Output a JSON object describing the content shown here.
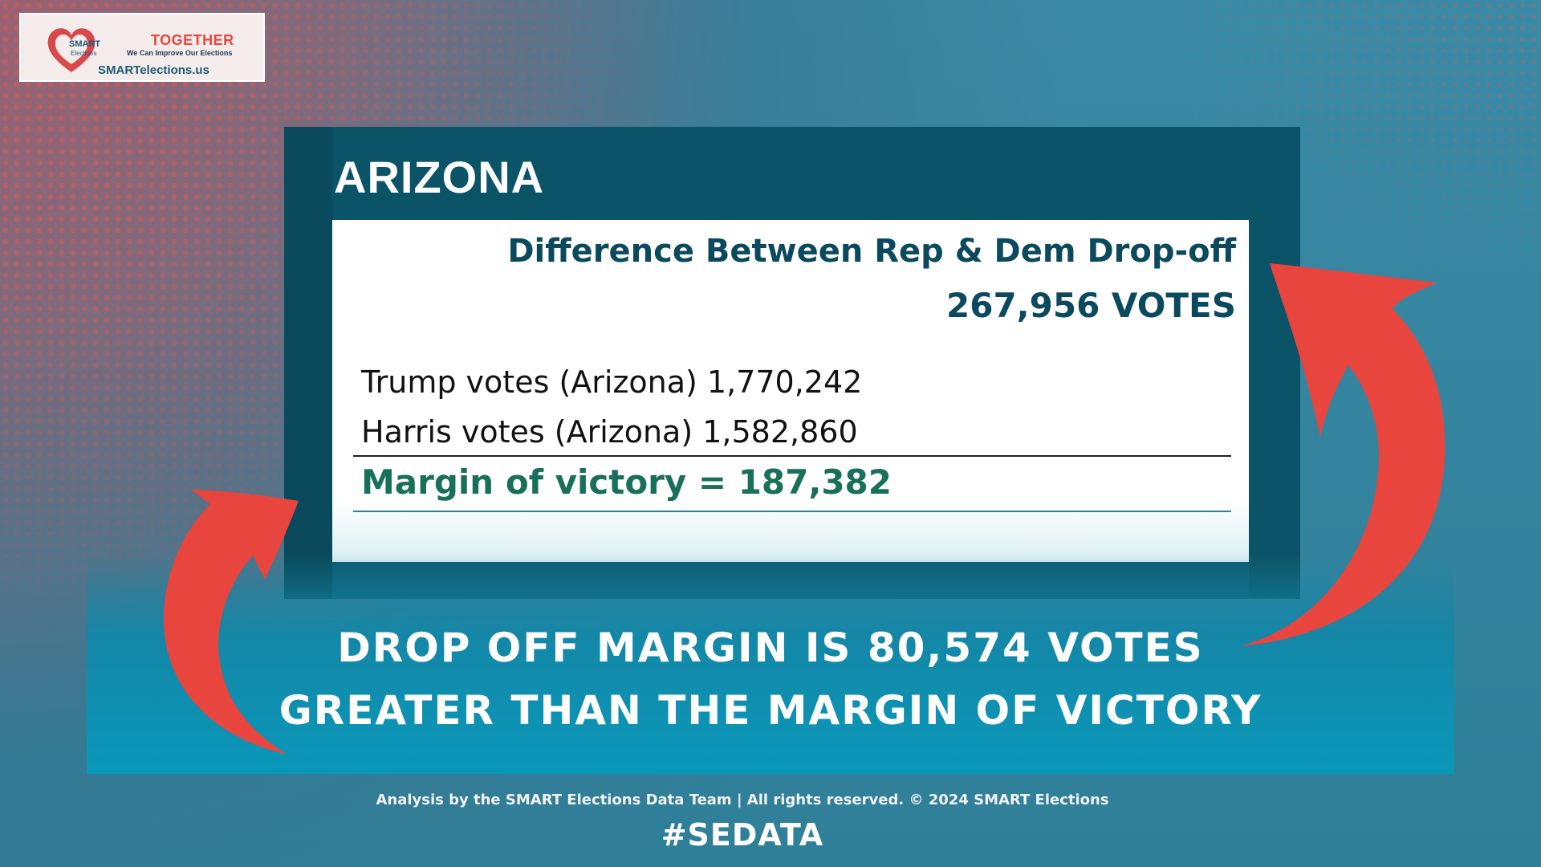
{
  "logo": {
    "brand_top": "SMART",
    "brand_bottom": "Elections",
    "together": "TOGETHER",
    "tagline": "We Can Improve Our Elections",
    "url": "SMARTelections.us"
  },
  "card": {
    "state": "ARIZONA",
    "difference_title": "Difference Between Rep & Dem Drop-off",
    "difference_value": "267,956 VOTES",
    "trump_line": "Trump votes (Arizona) 1,770,242",
    "harris_line": "Harris votes (Arizona) 1,582,860",
    "margin_line": "Margin of victory = 187,382"
  },
  "banner": {
    "line1": "DROP OFF MARGIN IS 80,574 VOTES",
    "line2": "GREATER THAN THE MARGIN OF VICTORY"
  },
  "footer": {
    "credit": "Analysis by the SMART Elections Data Team  | All rights reserved. © 2024 SMART Elections",
    "hashtag": "#SEDATA"
  },
  "colors": {
    "background": "#2f7f99",
    "card": "#0b5367",
    "accent_red": "#e8453f",
    "margin_green": "#18705a",
    "heading_teal": "#0b4a5e"
  }
}
